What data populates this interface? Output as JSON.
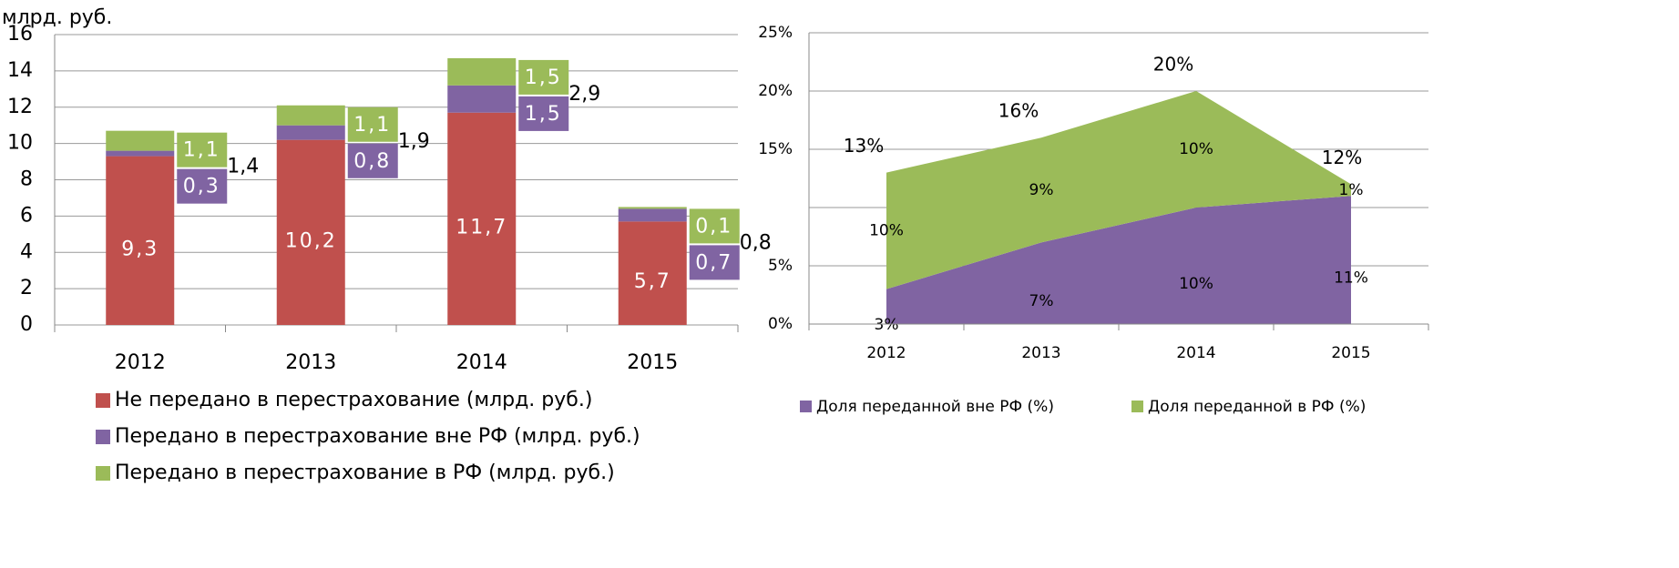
{
  "chart_data": [
    {
      "type": "stacked_bar",
      "y_label": "млрд. руб.",
      "categories": [
        "2012",
        "2013",
        "2014",
        "2015"
      ],
      "series": [
        {
          "name": "Не передано в перестрахование (млрд. руб.)",
          "color": "#c0504d",
          "values": [
            9.3,
            10.2,
            11.7,
            5.7
          ],
          "value_labels": [
            "9,3",
            "10,2",
            "11,7",
            "5,7"
          ]
        },
        {
          "name": "Передано в перестрахование вне РФ (млрд. руб.)",
          "color": "#8064a2",
          "values": [
            0.3,
            0.8,
            1.5,
            0.7
          ],
          "value_labels": [
            "0,3",
            "0,8",
            "1,5",
            "0,7"
          ]
        },
        {
          "name": "Передано в перестрахование в РФ (млрд. руб.)",
          "color": "#9bbb59",
          "values": [
            1.1,
            1.1,
            1.5,
            0.1
          ],
          "value_labels": [
            "1,1",
            "1,1",
            "1,5",
            "0,1"
          ]
        }
      ],
      "transfer_totals": {
        "values": [
          1.4,
          1.9,
          2.9,
          0.8
        ],
        "value_labels": [
          "1,4",
          "1,9",
          "2,9",
          "0,8"
        ]
      },
      "ylim": [
        0,
        16
      ],
      "yticks": [
        0,
        2,
        4,
        6,
        8,
        10,
        12,
        14,
        16
      ],
      "grid": true,
      "legend": "bottom"
    },
    {
      "type": "stacked_area",
      "categories": [
        "2012",
        "2013",
        "2014",
        "2015"
      ],
      "series": [
        {
          "name": "Доля переданной вне РФ (%)",
          "color": "#8064a2",
          "values": [
            3,
            7,
            10,
            11
          ],
          "value_labels": [
            "3%",
            "7%",
            "10%",
            "11%"
          ]
        },
        {
          "name": "Доля переданной в РФ (%)",
          "color": "#9bbb59",
          "values": [
            10,
            9,
            10,
            1
          ],
          "value_labels": [
            "10%",
            "9%",
            "10%",
            "1%"
          ]
        }
      ],
      "totals": {
        "values": [
          13,
          16,
          20,
          12
        ],
        "value_labels": [
          "13%",
          "16%",
          "20%",
          "12%"
        ]
      },
      "ylim": [
        0,
        25
      ],
      "yticks": [
        {
          "value": 0,
          "label": "0%"
        },
        {
          "value": 5,
          "label": "5%"
        },
        {
          "value": 10
        },
        {
          "value": 15,
          "label": "15%"
        },
        {
          "value": 20,
          "label": "20%"
        },
        {
          "value": 25,
          "label": "25%"
        }
      ],
      "grid": true,
      "legend": "bottom"
    }
  ]
}
